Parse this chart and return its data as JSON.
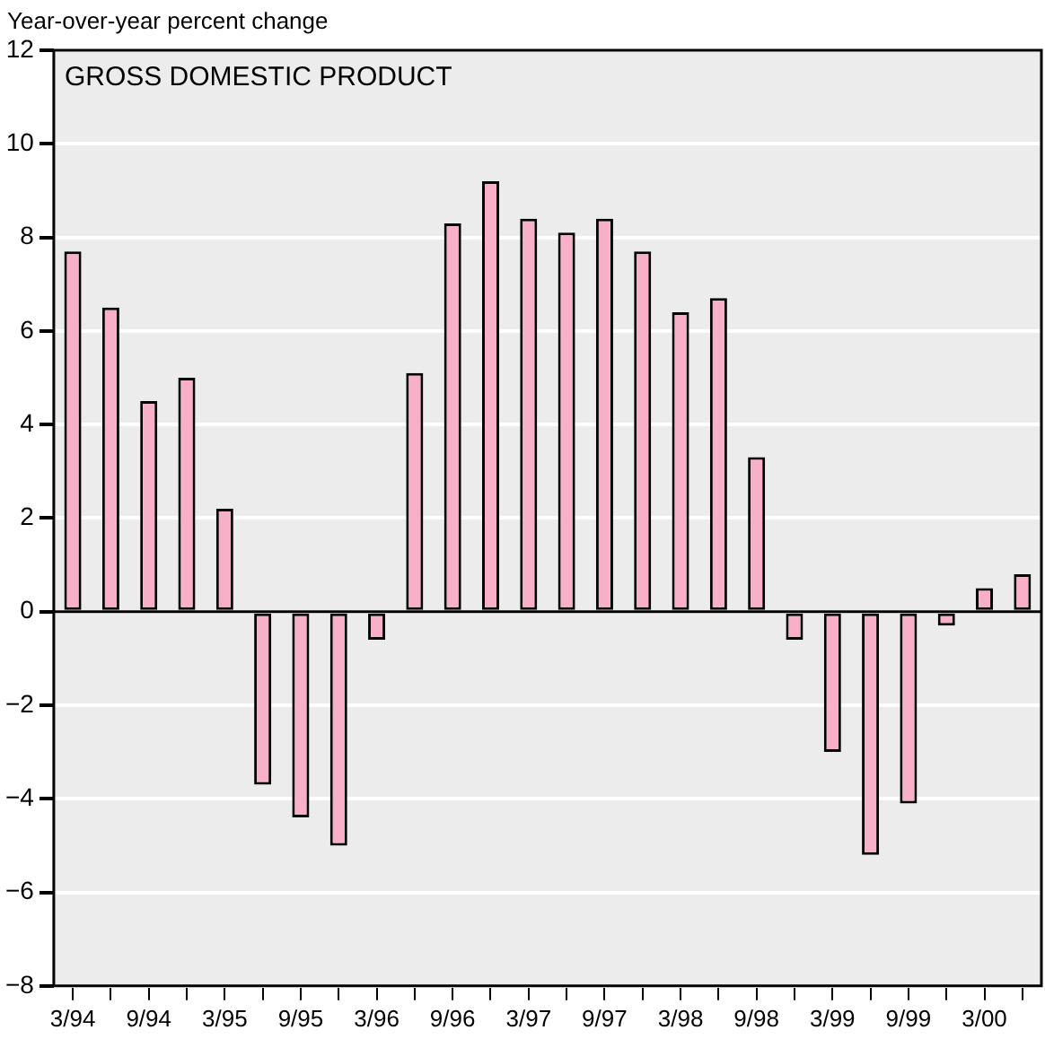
{
  "chart_data": {
    "type": "bar",
    "title": "GROSS DOMESTIC PRODUCT",
    "ylabel": "Year-over-year percent change",
    "categories": [
      "3/94",
      null,
      "9/94",
      null,
      "3/95",
      null,
      "9/95",
      null,
      "3/96",
      null,
      "9/96",
      null,
      "3/97",
      null,
      "9/97",
      null,
      "3/98",
      null,
      "9/98",
      null,
      "3/99",
      null,
      "9/99",
      null,
      "3/00",
      null
    ],
    "values": [
      7.7,
      6.5,
      4.5,
      5.0,
      2.2,
      -3.7,
      -4.4,
      -5.0,
      -0.6,
      5.1,
      8.3,
      9.2,
      8.4,
      8.1,
      8.4,
      7.7,
      6.4,
      6.7,
      3.3,
      -0.6,
      -3.0,
      -5.2,
      -4.1,
      -0.3,
      0.5,
      0.8
    ],
    "color": "#f7b0c8",
    "ylim": [
      -8,
      12
    ],
    "yticks": [
      -8,
      -6,
      -4,
      -2,
      0,
      2,
      4,
      6,
      8,
      10,
      12
    ],
    "grid": "y",
    "legend": false
  }
}
